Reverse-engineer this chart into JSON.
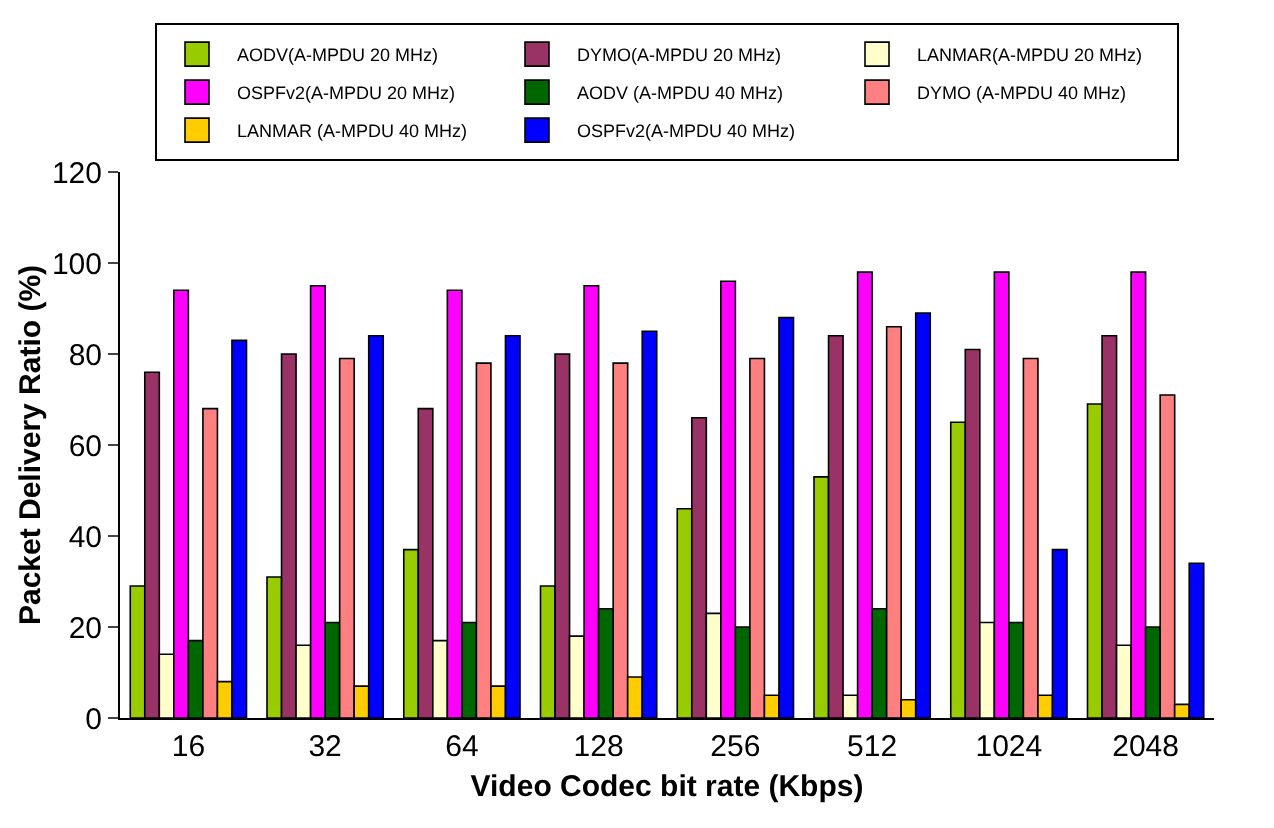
{
  "chart_data": {
    "type": "bar",
    "xlabel": "Video Codec bit rate (Kbps)",
    "ylabel": "Packet Delivery Ratio (%)",
    "categories": [
      "16",
      "32",
      "64",
      "128",
      "256",
      "512",
      "1024",
      "2048"
    ],
    "series": [
      {
        "name": "AODV(A-MPDU 20 MHz)",
        "color": "#99cc00",
        "values": [
          29,
          31,
          37,
          29,
          46,
          53,
          65,
          69
        ]
      },
      {
        "name": "DYMO(A-MPDU 20 MHz)",
        "color": "#993366",
        "values": [
          76,
          80,
          68,
          80,
          66,
          84,
          81,
          84
        ]
      },
      {
        "name": "LANMAR(A-MPDU 20 MHz)",
        "color": "#ffffcc",
        "values": [
          14,
          16,
          17,
          18,
          23,
          5,
          21,
          16
        ]
      },
      {
        "name": "OSPFv2(A-MPDU 20 MHz)",
        "color": "#ff00ff",
        "values": [
          94,
          95,
          94,
          95,
          96,
          98,
          98,
          98
        ]
      },
      {
        "name": "AODV (A-MPDU 40 MHz)",
        "color": "#006600",
        "values": [
          17,
          21,
          21,
          24,
          20,
          24,
          21,
          20
        ]
      },
      {
        "name": "DYMO (A-MPDU 40 MHz)",
        "color": "#ff8080",
        "values": [
          68,
          79,
          78,
          78,
          79,
          86,
          79,
          71
        ]
      },
      {
        "name": "LANMAR (A-MPDU 40 MHz)",
        "color": "#ffcc00",
        "values": [
          8,
          7,
          7,
          9,
          5,
          4,
          5,
          3
        ]
      },
      {
        "name": "OSPFv2(A-MPDU 40 MHz)",
        "color": "#0000ff",
        "values": [
          83,
          84,
          84,
          85,
          88,
          89,
          37,
          34
        ]
      }
    ],
    "ylim": [
      0,
      120
    ],
    "yticks": [
      0,
      20,
      40,
      60,
      80,
      100,
      120
    ],
    "grid": false,
    "legend": "top"
  }
}
